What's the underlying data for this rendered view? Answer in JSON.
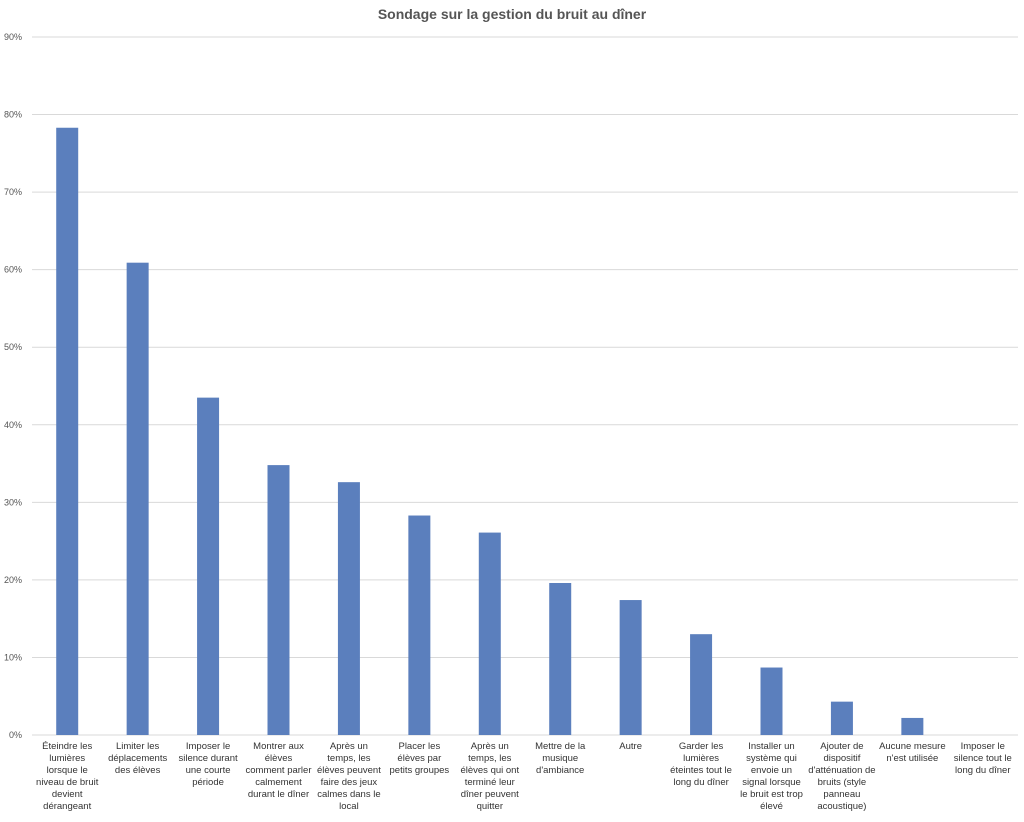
{
  "chart_data": {
    "type": "bar",
    "title": "Sondage sur la gestion du bruit au dîner",
    "xlabel": "",
    "ylabel": "",
    "ylim": [
      0,
      90
    ],
    "yticks": [
      0,
      10,
      20,
      30,
      40,
      50,
      60,
      70,
      80,
      90
    ],
    "ytick_labels": [
      "0%",
      "10%",
      "20%",
      "30%",
      "40%",
      "50%",
      "60%",
      "70%",
      "80%",
      "90%"
    ],
    "grid": true,
    "legend": "none",
    "bar_color": "#5b7fbd",
    "gridline_color": "#d9d9d9",
    "categories": [
      "Éteindre les lumières lorsque le niveau de bruit devient dérangeant",
      "Limiter les déplacements des élèves",
      "Imposer le silence durant une courte période",
      "Montrer aux élèves comment parler calmement durant le dîner",
      "Après un temps, les élèves peuvent faire des jeux calmes dans le local",
      "Placer les élèves par petits groupes",
      "Après un temps, les élèves qui ont terminé leur dîner peuvent quitter",
      "Mettre de la musique d'ambiance",
      "Autre",
      "Garder les lumières éteintes tout le long du dîner",
      "Installer un système qui envoie un signal lorsque le bruit est trop élevé",
      "Ajouter de dispositif d'atténuation de bruits (style panneau acoustique)",
      "Aucune mesure n'est utilisée",
      "Imposer le silence tout le long du dîner"
    ],
    "values": [
      78.3,
      60.9,
      43.5,
      34.8,
      32.6,
      28.3,
      26.1,
      19.6,
      17.4,
      13.0,
      8.7,
      4.3,
      2.2,
      0
    ]
  }
}
